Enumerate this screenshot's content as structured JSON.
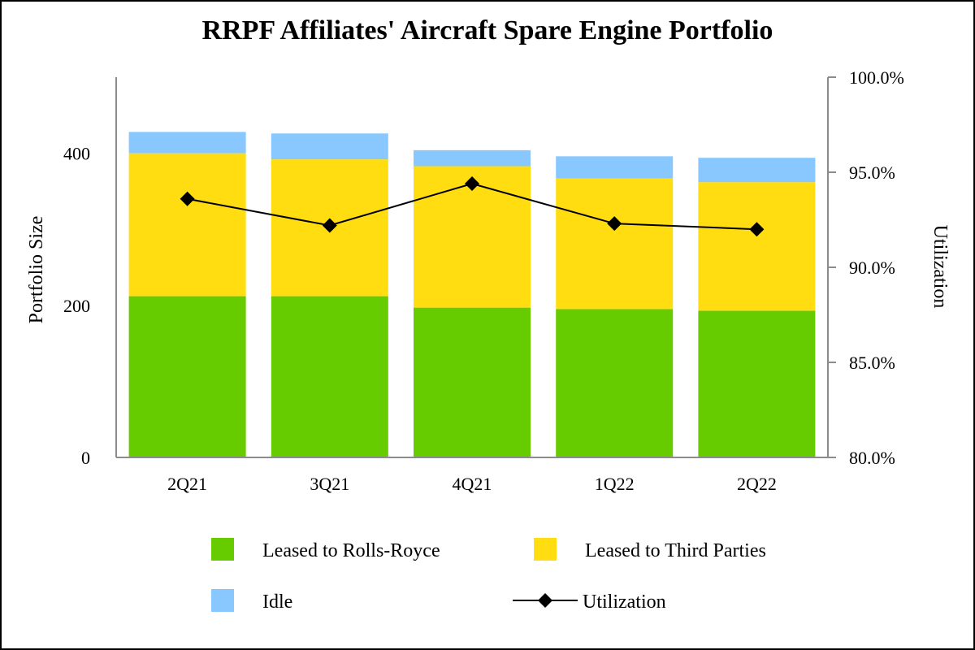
{
  "chart_data": {
    "type": "bar",
    "stacked": true,
    "title": "RRPF Affiliates' Aircraft Spare Engine Portfolio",
    "categories": [
      "2Q21",
      "3Q21",
      "4Q21",
      "1Q22",
      "2Q22"
    ],
    "ylabel": "Portfolio Size",
    "y2label": "Utilization",
    "ylim": [
      0,
      500
    ],
    "yticks": [
      0,
      200,
      400
    ],
    "y2lim": [
      80.0,
      100.0
    ],
    "y2ticks": [
      "80.0%",
      "85.0%",
      "90.0%",
      "95.0%",
      "100.0%"
    ],
    "y2tick_values": [
      80,
      85,
      90,
      95,
      100
    ],
    "series": [
      {
        "name": "Leased to Rolls-Royce",
        "color": "#66cc00",
        "values": [
          212,
          212,
          197,
          195,
          193
        ]
      },
      {
        "name": "Leased to Third Parties",
        "color": "#ffdd11",
        "values": [
          188,
          180,
          186,
          172,
          169
        ]
      },
      {
        "name": "Idle",
        "color": "#88c8ff",
        "values": [
          28,
          34,
          21,
          29,
          32
        ]
      }
    ],
    "line": {
      "name": "Utilization",
      "color": "#000000",
      "marker": "diamond",
      "axis": "right",
      "values": [
        93.6,
        92.2,
        94.4,
        92.3,
        92.0
      ]
    },
    "legend": {
      "placement": "bottom",
      "items": [
        "Leased to Rolls-Royce",
        "Leased to Third Parties",
        "Idle",
        "Utilization"
      ]
    },
    "axis_color": "#8c8c8c"
  }
}
